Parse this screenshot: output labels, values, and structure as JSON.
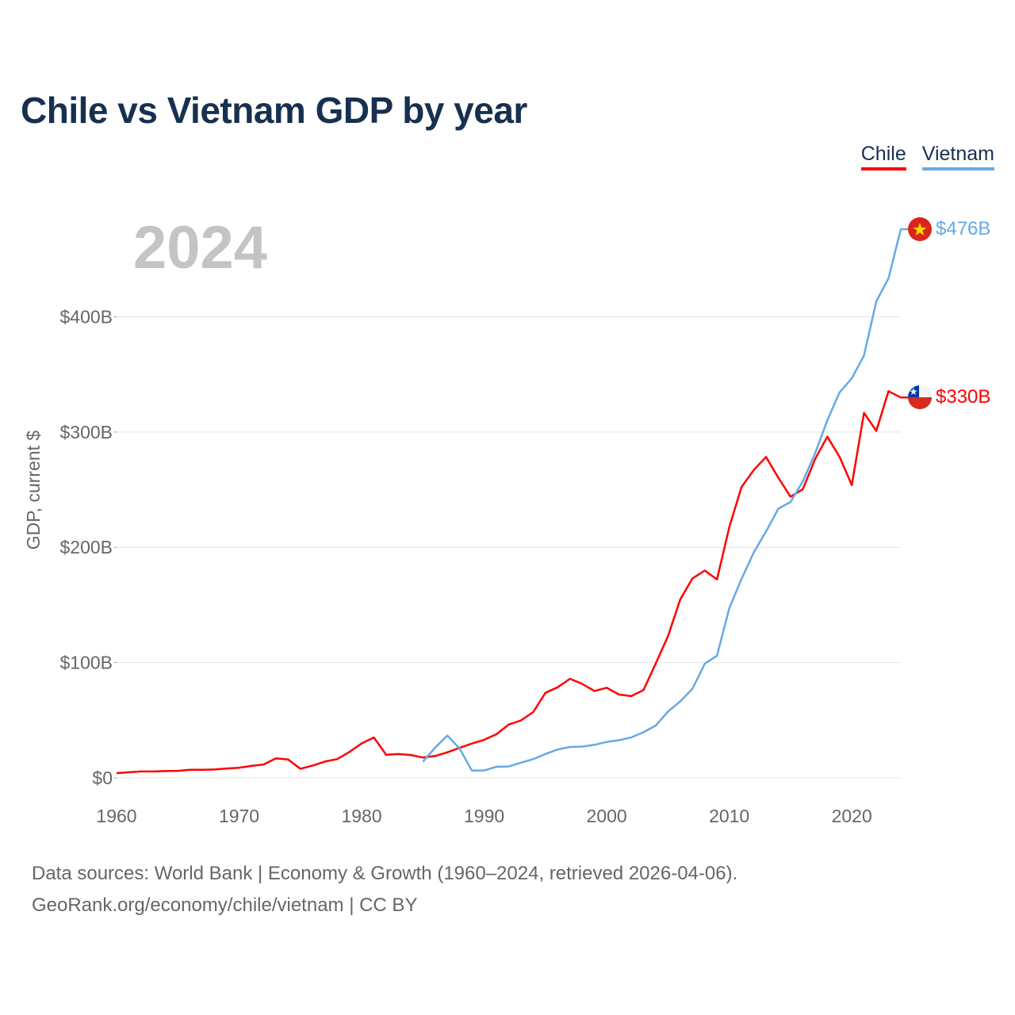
{
  "title": "Chile vs Vietnam GDP by year",
  "legend": {
    "chile": "Chile",
    "vietnam": "Vietnam"
  },
  "year_watermark": "2024",
  "colors": {
    "chile": "#ff0000",
    "vietnam": "#66a9e6",
    "title": "#17304f"
  },
  "end_labels": {
    "chile": "$330B",
    "vietnam": "$476B"
  },
  "flags": {
    "chile": "chile-flag-icon",
    "vietnam": "vietnam-flag-icon"
  },
  "source": {
    "line1": "Data sources: World Bank | Economy & Growth (1960–2024, retrieved 2026-04-06).",
    "line2": "GeoRank.org/economy/chile/vietnam | CC BY"
  },
  "chart_data": {
    "type": "line",
    "title": "Chile vs Vietnam GDP by year",
    "xlabel": "",
    "ylabel": "GDP, current $",
    "xlim": [
      1960,
      2024
    ],
    "ylim": [
      0,
      476
    ],
    "x_ticks": [
      1960,
      1970,
      1980,
      1990,
      2000,
      2010,
      2020
    ],
    "x_tick_labels": [
      "1960",
      "1970",
      "1980",
      "1990",
      "2000",
      "2010",
      "2020"
    ],
    "y_ticks": [
      0,
      100,
      200,
      300,
      400
    ],
    "y_tick_labels": [
      "$0",
      "$100B",
      "$200B",
      "$300B",
      "$400B"
    ],
    "grid": true,
    "legend_position": "top-right",
    "units": "billion current US$",
    "series": [
      {
        "name": "Chile",
        "x": [
          1960,
          1961,
          1962,
          1963,
          1964,
          1965,
          1966,
          1967,
          1968,
          1969,
          1970,
          1971,
          1972,
          1973,
          1974,
          1975,
          1976,
          1977,
          1978,
          1979,
          1980,
          1981,
          1982,
          1983,
          1984,
          1985,
          1986,
          1987,
          1988,
          1989,
          1990,
          1991,
          1992,
          1993,
          1994,
          1995,
          1996,
          1997,
          1998,
          1999,
          2000,
          2001,
          2002,
          2003,
          2004,
          2005,
          2006,
          2007,
          2008,
          2009,
          2010,
          2011,
          2012,
          2013,
          2014,
          2015,
          2016,
          2017,
          2018,
          2019,
          2020,
          2021,
          2022,
          2023,
          2024
        ],
        "values": [
          4.1,
          4.9,
          5.6,
          5.6,
          5.9,
          6.1,
          7.1,
          7.1,
          7.3,
          8.2,
          8.8,
          10.4,
          11.6,
          16.9,
          16.0,
          7.9,
          10.7,
          14.2,
          16.3,
          22.5,
          29.9,
          35.1,
          20.0,
          20.7,
          19.9,
          17.7,
          19.0,
          22.2,
          26.1,
          29.8,
          33.1,
          37.9,
          46.2,
          49.9,
          57.1,
          73.8,
          78.6,
          86.0,
          81.6,
          75.4,
          78.2,
          72.3,
          70.9,
          76.2,
          99.2,
          122.9,
          154.8,
          173.1,
          179.9,
          172.2,
          217.5,
          252.3,
          267.1,
          278.4,
          260.5,
          243.9,
          250.4,
          276.4,
          296.0,
          278.6,
          254.0,
          316.6,
          301.0,
          335.5,
          330.0
        ]
      },
      {
        "name": "Vietnam",
        "x": [
          1985,
          1986,
          1987,
          1988,
          1989,
          1990,
          1991,
          1992,
          1993,
          1994,
          1995,
          1996,
          1997,
          1998,
          1999,
          2000,
          2001,
          2002,
          2003,
          2004,
          2005,
          2006,
          2007,
          2008,
          2009,
          2010,
          2011,
          2012,
          2013,
          2014,
          2015,
          2016,
          2017,
          2018,
          2019,
          2020,
          2021,
          2022,
          2023,
          2024
        ],
        "values": [
          14.1,
          26.3,
          36.7,
          25.4,
          6.3,
          6.5,
          9.6,
          9.9,
          13.2,
          16.3,
          20.7,
          24.7,
          26.8,
          27.2,
          28.7,
          31.2,
          32.7,
          35.1,
          39.6,
          45.4,
          57.6,
          66.4,
          77.4,
          99.1,
          106.0,
          147.2,
          172.6,
          195.6,
          213.7,
          233.5,
          239.3,
          257.1,
          281.4,
          310.1,
          334.4,
          346.6,
          366.5,
          413.4,
          433.4,
          476.0
        ]
      }
    ]
  }
}
